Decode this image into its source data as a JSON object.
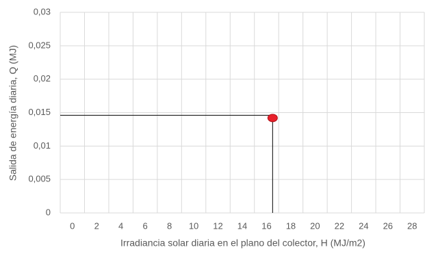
{
  "chart_data": {
    "type": "scatter",
    "x_label": "Irradiancia solar diaria en el plano del colector, H (MJ/m2)",
    "y_label": "Salida de energía diaria, Q (MJ)",
    "series": [
      {
        "color": "#e8202a",
        "x": [
          16.5
        ],
        "values": [
          0.0142
        ]
      }
    ],
    "xlim": [
      -1,
      29
    ],
    "xticks": [
      0,
      2,
      4,
      6,
      8,
      10,
      12,
      14,
      16,
      18,
      20,
      22,
      24,
      26,
      28
    ],
    "ylim": [
      0,
      0.03
    ],
    "yticks": [
      0,
      {
        "value": 0.005,
        "label": "0,005"
      },
      {
        "value": 0.01,
        "label": "0,01"
      },
      {
        "value": 0.015,
        "label": "0,015"
      },
      {
        "value": 0.02,
        "label": "0,02"
      },
      {
        "value": 0.025,
        "label": "0,025"
      },
      {
        "value": 0.03,
        "label": "0,03"
      }
    ],
    "grid": true
  }
}
